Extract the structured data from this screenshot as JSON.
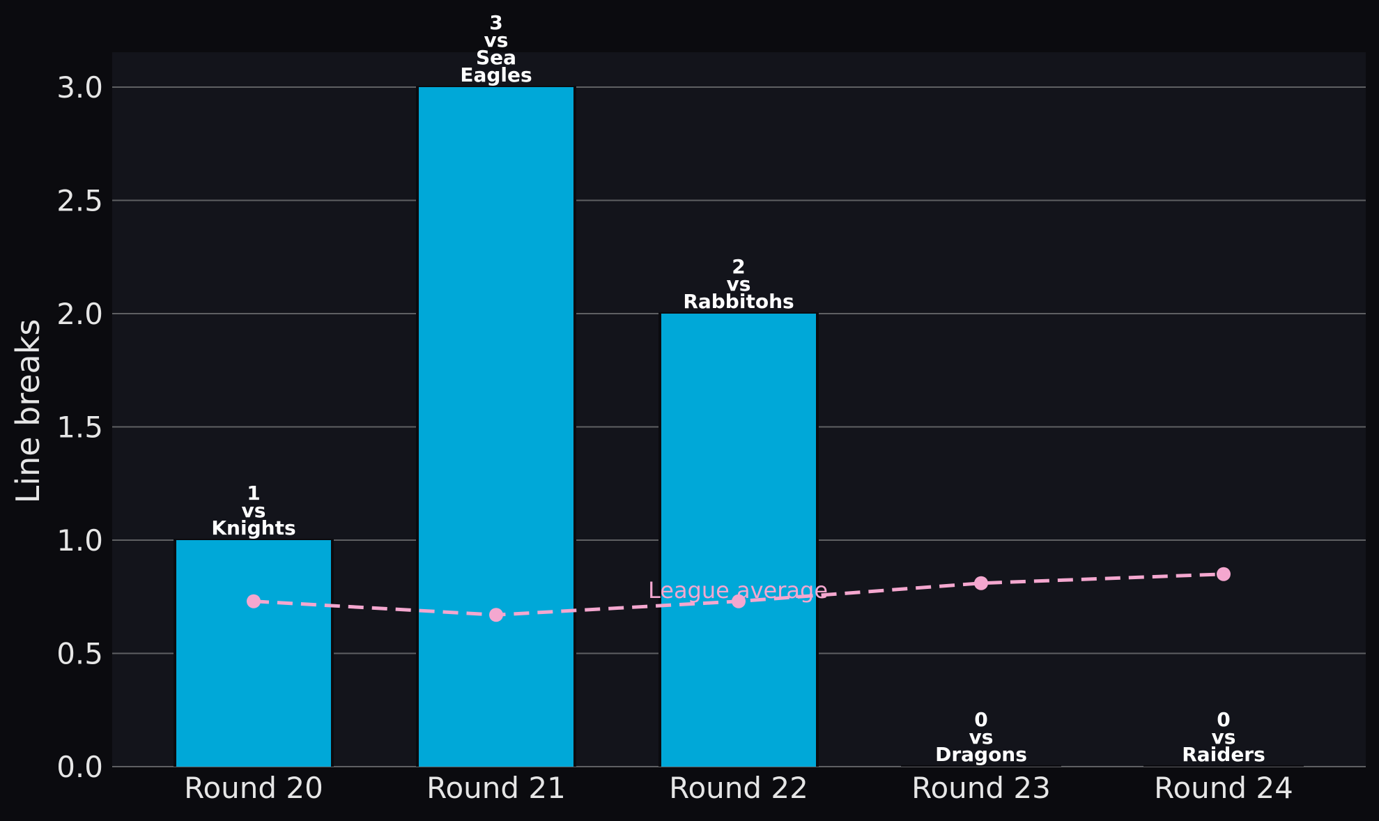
{
  "colors": {
    "page_background": "#0b0b0f",
    "plot_background": "#13141b",
    "bar": "#00a8d8",
    "gridline": "#5f6063",
    "average_line": "#f4a7cf",
    "text": "#e6e6e6",
    "bar_label": "#ffffff"
  },
  "chart_data": {
    "type": "bar",
    "title": "",
    "xlabel": "",
    "ylabel": "Line breaks",
    "ylim": [
      0,
      3.15
    ],
    "yticks": [
      "0.0",
      "0.5",
      "1.0",
      "1.5",
      "2.0",
      "2.5",
      "3.0"
    ],
    "ytick_values": [
      0,
      0.5,
      1.0,
      1.5,
      2.0,
      2.5,
      3.0
    ],
    "grid": "horizontal",
    "categories": [
      "Round 20",
      "Round 21",
      "Round 22",
      "Round 23",
      "Round 24"
    ],
    "values": [
      1,
      3,
      2,
      0,
      0
    ],
    "bar_labels": [
      [
        "1",
        "vs",
        "Knights"
      ],
      [
        "3",
        "vs",
        "Sea",
        "Eagles"
      ],
      [
        "2",
        "vs",
        "Rabbitohs"
      ],
      [
        "0",
        "vs",
        "Dragons"
      ],
      [
        "0",
        "vs",
        "Raiders"
      ]
    ],
    "average_series": {
      "label": "League average",
      "values": [
        0.73,
        0.67,
        0.73,
        0.81,
        0.85
      ]
    }
  }
}
